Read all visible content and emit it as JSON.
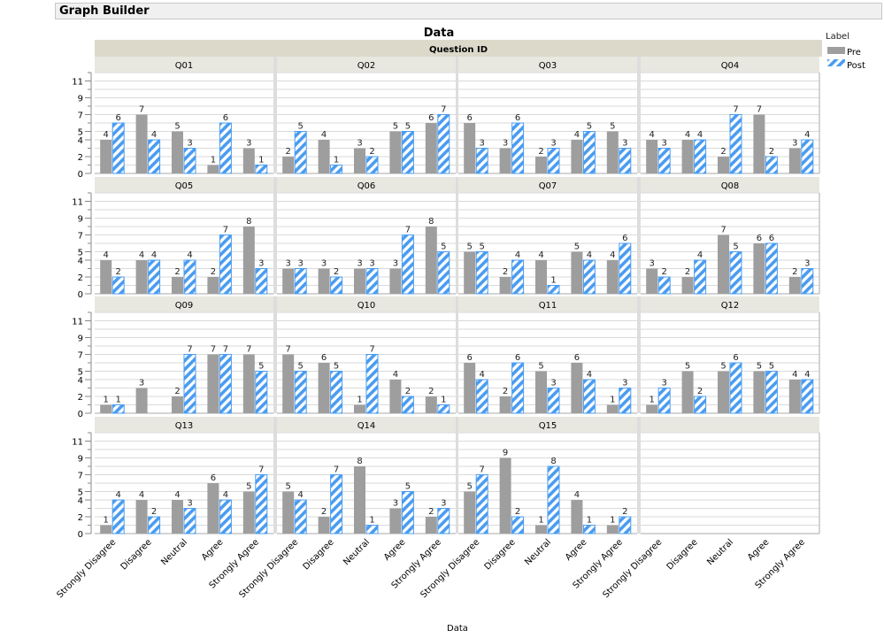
{
  "window": {
    "title": "Graph Builder"
  },
  "chart_data": {
    "type": "bar",
    "title": "Data",
    "facet_title": "Question ID",
    "xlabel": "Data",
    "ylabel": "",
    "ylim": [
      0,
      12
    ],
    "yticks": [
      0,
      2,
      4,
      5,
      7,
      9,
      11
    ],
    "grid": true,
    "categories": [
      "Strongly Disagree",
      "Disagree",
      "Neutral",
      "Agree",
      "Strongly Agree"
    ],
    "legend": {
      "title": "Label",
      "position": "right",
      "entries": [
        {
          "name": "Pre",
          "color": "#9e9e9e",
          "pattern": "solid"
        },
        {
          "name": "Post",
          "color": "#4a9cf0",
          "pattern": "hatched"
        }
      ]
    },
    "panels": [
      {
        "id": "Q01",
        "series": [
          {
            "name": "Pre",
            "values": [
              4,
              7,
              5,
              1,
              3
            ]
          },
          {
            "name": "Post",
            "values": [
              6,
              4,
              3,
              6,
              1
            ]
          }
        ]
      },
      {
        "id": "Q02",
        "series": [
          {
            "name": "Pre",
            "values": [
              2,
              4,
              3,
              5,
              6
            ]
          },
          {
            "name": "Post",
            "values": [
              5,
              1,
              2,
              5,
              7
            ]
          }
        ]
      },
      {
        "id": "Q03",
        "series": [
          {
            "name": "Pre",
            "values": [
              6,
              3,
              2,
              4,
              5
            ]
          },
          {
            "name": "Post",
            "values": [
              3,
              6,
              3,
              5,
              3
            ]
          }
        ]
      },
      {
        "id": "Q04",
        "series": [
          {
            "name": "Pre",
            "values": [
              4,
              4,
              2,
              7,
              3
            ]
          },
          {
            "name": "Post",
            "values": [
              3,
              4,
              7,
              2,
              4
            ]
          }
        ]
      },
      {
        "id": "Q05",
        "series": [
          {
            "name": "Pre",
            "values": [
              4,
              4,
              2,
              2,
              8
            ]
          },
          {
            "name": "Post",
            "values": [
              2,
              4,
              4,
              7,
              3
            ]
          }
        ]
      },
      {
        "id": "Q06",
        "series": [
          {
            "name": "Pre",
            "values": [
              3,
              3,
              3,
              3,
              8
            ]
          },
          {
            "name": "Post",
            "values": [
              3,
              2,
              3,
              7,
              5
            ]
          }
        ]
      },
      {
        "id": "Q07",
        "series": [
          {
            "name": "Pre",
            "values": [
              5,
              2,
              4,
              5,
              4
            ]
          },
          {
            "name": "Post",
            "values": [
              5,
              4,
              1,
              4,
              6
            ]
          }
        ]
      },
      {
        "id": "Q08",
        "series": [
          {
            "name": "Pre",
            "values": [
              3,
              2,
              7,
              6,
              2
            ]
          },
          {
            "name": "Post",
            "values": [
              2,
              4,
              5,
              6,
              3
            ]
          }
        ]
      },
      {
        "id": "Q09",
        "series": [
          {
            "name": "Pre",
            "values": [
              1,
              3,
              2,
              7,
              7
            ]
          },
          {
            "name": "Post",
            "values": [
              1,
              null,
              7,
              7,
              5
            ]
          }
        ]
      },
      {
        "id": "Q10",
        "series": [
          {
            "name": "Pre",
            "values": [
              7,
              6,
              1,
              4,
              2
            ]
          },
          {
            "name": "Post",
            "values": [
              5,
              5,
              7,
              2,
              1
            ]
          }
        ]
      },
      {
        "id": "Q11",
        "series": [
          {
            "name": "Pre",
            "values": [
              6,
              2,
              5,
              6,
              1
            ]
          },
          {
            "name": "Post",
            "values": [
              4,
              6,
              3,
              4,
              3
            ]
          }
        ]
      },
      {
        "id": "Q12",
        "series": [
          {
            "name": "Pre",
            "values": [
              1,
              5,
              5,
              5,
              4
            ]
          },
          {
            "name": "Post",
            "values": [
              3,
              2,
              6,
              5,
              4
            ]
          }
        ]
      },
      {
        "id": "Q13",
        "series": [
          {
            "name": "Pre",
            "values": [
              1,
              4,
              4,
              6,
              5
            ]
          },
          {
            "name": "Post",
            "values": [
              4,
              2,
              3,
              4,
              7
            ]
          }
        ]
      },
      {
        "id": "Q14",
        "series": [
          {
            "name": "Pre",
            "values": [
              5,
              2,
              8,
              3,
              2
            ]
          },
          {
            "name": "Post",
            "values": [
              4,
              7,
              1,
              5,
              3
            ]
          }
        ]
      },
      {
        "id": "Q15",
        "series": [
          {
            "name": "Pre",
            "values": [
              5,
              9,
              1,
              4,
              1
            ]
          },
          {
            "name": "Post",
            "values": [
              7,
              2,
              8,
              1,
              2
            ]
          }
        ]
      }
    ]
  }
}
